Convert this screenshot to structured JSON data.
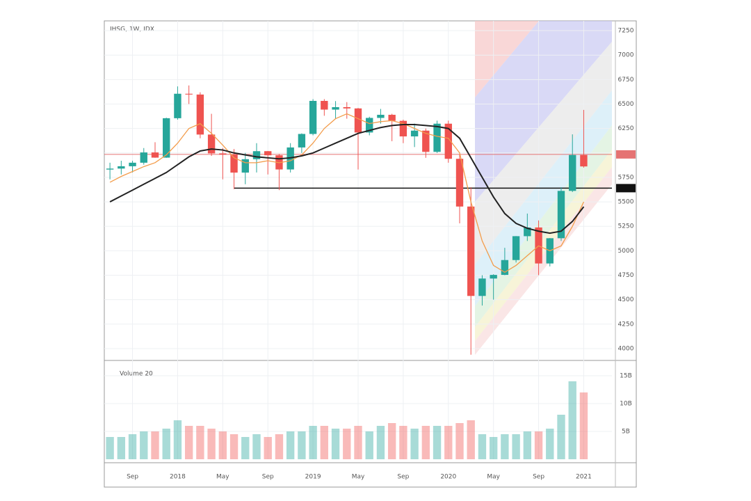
{
  "chart_data": {
    "type": "candlestick",
    "title": "IHSG, 1W, IDX",
    "categories": [
      null,
      null,
      "Sep",
      null,
      null,
      null,
      "2018",
      null,
      null,
      null,
      "May",
      null,
      null,
      null,
      "Sep",
      null,
      null,
      null,
      "2019",
      null,
      null,
      null,
      "May",
      null,
      null,
      null,
      "Sep",
      null,
      null,
      null,
      "2020",
      null,
      null,
      null,
      "May",
      null,
      null,
      null,
      "Sep",
      null,
      null,
      null,
      "2021"
    ],
    "open": [
      5830,
      5840,
      5864,
      5900,
      6005,
      5952,
      6355,
      6605,
      6597,
      6188,
      5995,
      5983,
      5799,
      5936,
      6018,
      5976,
      5831,
      6056,
      6194,
      6532,
      6443,
      6468,
      6455,
      6209,
      6358,
      6390,
      6328,
      6169,
      6228,
      6011,
      6299,
      5940,
      5452,
      4538,
      4716,
      4753,
      4905,
      5149,
      5238,
      4870,
      5128,
      5612,
      5979
    ],
    "high": [
      5900,
      5920,
      5920,
      6050,
      6110,
      6360,
      6680,
      6690,
      6620,
      6400,
      6050,
      6040,
      6000,
      6100,
      6020,
      5990,
      6100,
      6200,
      6550,
      6550,
      6530,
      6520,
      6460,
      6370,
      6450,
      6400,
      6340,
      6300,
      6250,
      6330,
      6330,
      5990,
      5650,
      4750,
      4760,
      5030,
      5150,
      5380,
      5310,
      5130,
      5650,
      6190,
      6440
    ],
    "low": [
      5730,
      5780,
      5800,
      5880,
      5950,
      5950,
      6340,
      6500,
      6150,
      5970,
      5730,
      5630,
      5680,
      5800,
      5780,
      5620,
      5800,
      6000,
      6180,
      6380,
      6350,
      6350,
      5830,
      6180,
      6300,
      6120,
      6100,
      6060,
      5950,
      6000,
      5900,
      5280,
      3937,
      4440,
      4500,
      4750,
      4880,
      5100,
      4750,
      4840,
      5100,
      5600,
      5850
    ],
    "close": [
      5840,
      5864,
      5900,
      6005,
      5952,
      6355,
      6605,
      6597,
      6188,
      5995,
      5983,
      5799,
      5936,
      6018,
      5976,
      5831,
      6056,
      6194,
      6532,
      6443,
      6468,
      6455,
      6209,
      6358,
      6390,
      6328,
      6169,
      6228,
      6011,
      6299,
      5940,
      5452,
      4538,
      4716,
      4753,
      4905,
      5149,
      5238,
      4870,
      5128,
      5612,
      5979,
      5862
    ],
    "up_color": "#26a69a",
    "down_color": "#ef5350",
    "lines": [
      {
        "color": "#f39c4a",
        "values": [
          5700,
          5760,
          5810,
          5860,
          5900,
          5980,
          6100,
          6250,
          6300,
          6200,
          6080,
          5950,
          5900,
          5900,
          5920,
          5900,
          5920,
          5980,
          6100,
          6250,
          6350,
          6400,
          6350,
          6300,
          6320,
          6330,
          6300,
          6250,
          6200,
          6170,
          6150,
          6000,
          5500,
          5100,
          4850,
          4780,
          4850,
          4950,
          5050,
          5000,
          5050,
          5250,
          5500
        ]
      },
      {
        "color": "#222222",
        "values": [
          5500,
          5560,
          5620,
          5680,
          5740,
          5800,
          5880,
          5960,
          6020,
          6040,
          6030,
          6000,
          5980,
          5960,
          5950,
          5940,
          5950,
          5970,
          6000,
          6050,
          6100,
          6150,
          6200,
          6230,
          6260,
          6280,
          6290,
          6290,
          6280,
          6270,
          6250,
          6150,
          5950,
          5750,
          5550,
          5380,
          5280,
          5230,
          5200,
          5180,
          5200,
          5300,
          5450
        ]
      }
    ],
    "hlines": [
      {
        "value": 5985,
        "color": "#e57373"
      },
      {
        "value": 5640,
        "color": "#111111"
      }
    ],
    "ylim": [
      3900,
      7350
    ],
    "yticks": [
      4000,
      4250,
      4500,
      4750,
      5000,
      5250,
      5500,
      5750,
      6000,
      6250,
      6500,
      6750,
      7000,
      7250
    ],
    "grid": true,
    "volume": {
      "title": "Volume 20",
      "values": [
        4,
        4,
        4.5,
        5,
        5,
        5.5,
        7,
        6,
        6,
        5.5,
        5,
        4.5,
        4,
        4.5,
        4,
        4.5,
        5,
        5,
        6,
        6,
        5.5,
        5.5,
        6,
        5,
        6,
        6.5,
        6,
        5.5,
        6,
        6,
        6,
        6.5,
        7,
        4.5,
        4,
        4.5,
        4.5,
        5,
        5,
        5.5,
        8,
        14,
        12
      ],
      "ylim": [
        0,
        17
      ],
      "yticks": [
        {
          "value": 5,
          "label": "5B"
        },
        {
          "value": 10,
          "label": "10B"
        },
        {
          "value": 15,
          "label": "15B"
        }
      ]
    }
  }
}
